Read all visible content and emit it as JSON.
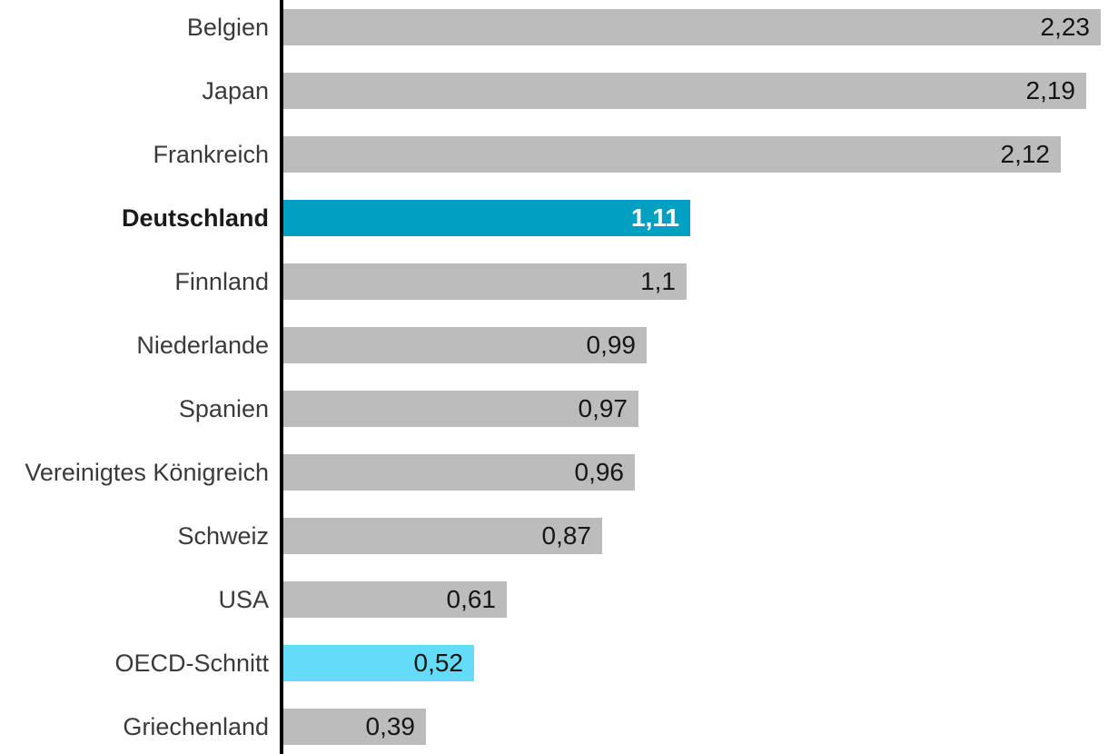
{
  "chart_data": {
    "type": "bar",
    "orientation": "horizontal",
    "title": "",
    "xlabel": "",
    "ylabel": "",
    "grid": false,
    "legend": false,
    "xlim": [
      0,
      2.23
    ],
    "categories": [
      "Belgien",
      "Japan",
      "Frankreich",
      "Deutschland",
      "Finnland",
      "Niederlande",
      "Spanien",
      "Vereinigtes Königreich",
      "Schweiz",
      "USA",
      "OECD-Schnitt",
      "Griechenland"
    ],
    "values": [
      2.23,
      2.19,
      2.12,
      1.11,
      1.1,
      0.99,
      0.97,
      0.96,
      0.87,
      0.61,
      0.52,
      0.39
    ],
    "value_labels": [
      "2,23",
      "2,19",
      "2,12",
      "1,11",
      "1,1",
      "0,99",
      "0,97",
      "0,96",
      "0,87",
      "0,61",
      "0,52",
      "0,39"
    ],
    "highlighted_category": "Deutschland",
    "secondary_highlighted_category": "OECD-Schnitt",
    "value_label_position": "inside-end"
  },
  "colors": {
    "bar_default": "#bcbcbc",
    "bar_highlight": "#00a0c2",
    "bar_secondary": "#62dcf8",
    "axis": "#000000",
    "label_text": "#3a3a3a",
    "value_text": "#161616",
    "value_text_highlight": "#ffffff"
  }
}
